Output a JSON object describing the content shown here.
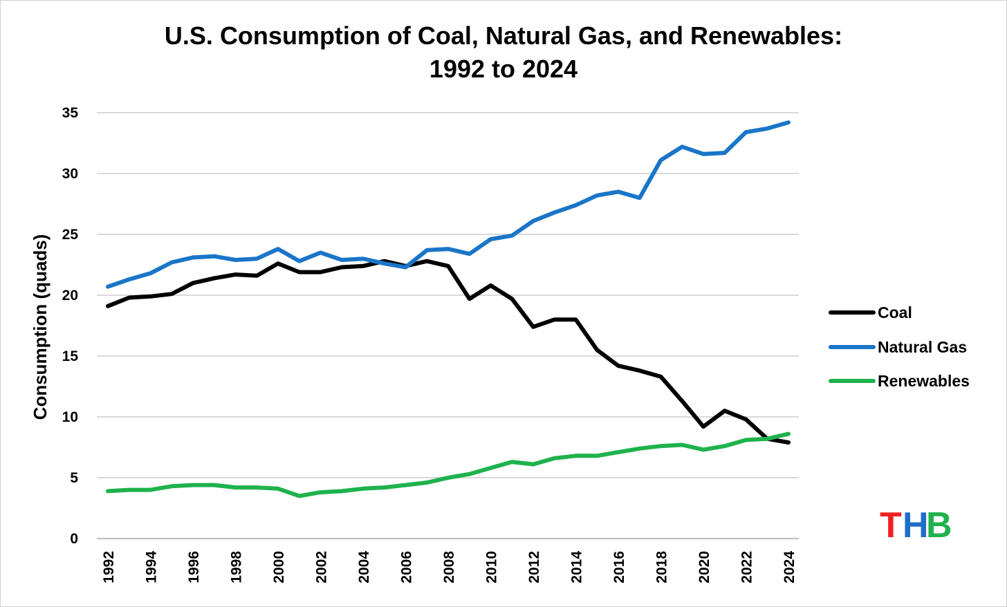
{
  "chart_data": {
    "type": "line",
    "title": "U.S. Consumption of Coal, Natural Gas, and Renewables:",
    "subtitle": "1992 to 2024",
    "xlabel": "",
    "ylabel": "Consumption (quads)",
    "ylim": [
      0,
      35
    ],
    "yticks": [
      "0",
      "5",
      "10",
      "15",
      "20",
      "25",
      "30",
      "35"
    ],
    "x": [
      1992,
      1993,
      1994,
      1995,
      1996,
      1997,
      1998,
      1999,
      2000,
      2001,
      2002,
      2003,
      2004,
      2005,
      2006,
      2007,
      2008,
      2009,
      2010,
      2011,
      2012,
      2013,
      2014,
      2015,
      2016,
      2017,
      2018,
      2019,
      2020,
      2021,
      2022,
      2023,
      2024
    ],
    "xtick_labels": [
      "1992",
      "1994",
      "1996",
      "1998",
      "2000",
      "2002",
      "2004",
      "2006",
      "2008",
      "2010",
      "2012",
      "2014",
      "2016",
      "2018",
      "2020",
      "2022",
      "2024"
    ],
    "grid": true,
    "legend_position": "right",
    "series": [
      {
        "name": "Coal",
        "color": "#000000",
        "values": [
          19.1,
          19.8,
          19.9,
          20.1,
          21.0,
          21.4,
          21.7,
          21.6,
          22.6,
          21.9,
          21.9,
          22.3,
          22.4,
          22.8,
          22.4,
          22.8,
          22.4,
          19.7,
          20.8,
          19.7,
          17.4,
          18.0,
          18.0,
          15.5,
          14.2,
          13.8,
          13.3,
          11.3,
          9.2,
          10.5,
          9.8,
          8.2,
          7.9
        ]
      },
      {
        "name": "Natural Gas",
        "color": "#1a75c8",
        "values": [
          20.7,
          21.3,
          21.8,
          22.7,
          23.1,
          23.2,
          22.9,
          23.0,
          23.8,
          22.8,
          23.5,
          22.9,
          23.0,
          22.6,
          22.3,
          23.7,
          23.8,
          23.4,
          24.6,
          24.9,
          26.1,
          26.8,
          27.4,
          28.2,
          28.5,
          28.0,
          31.1,
          32.2,
          31.6,
          31.7,
          33.4,
          33.7,
          34.2
        ]
      },
      {
        "name": "Renewables",
        "color": "#1fb24c",
        "values": [
          3.9,
          4.0,
          4.0,
          4.3,
          4.4,
          4.4,
          4.2,
          4.2,
          4.1,
          3.5,
          3.8,
          3.9,
          4.1,
          4.2,
          4.4,
          4.6,
          5.0,
          5.3,
          5.8,
          6.3,
          6.1,
          6.6,
          6.8,
          6.8,
          7.1,
          7.4,
          7.6,
          7.7,
          7.3,
          7.6,
          8.1,
          8.2,
          8.6
        ]
      }
    ]
  },
  "logo": {
    "letters": [
      {
        "char": "T",
        "color": "#ee2222"
      },
      {
        "char": "H",
        "color": "#1f6fc9"
      },
      {
        "char": "B",
        "color": "#1fb24c"
      }
    ]
  }
}
